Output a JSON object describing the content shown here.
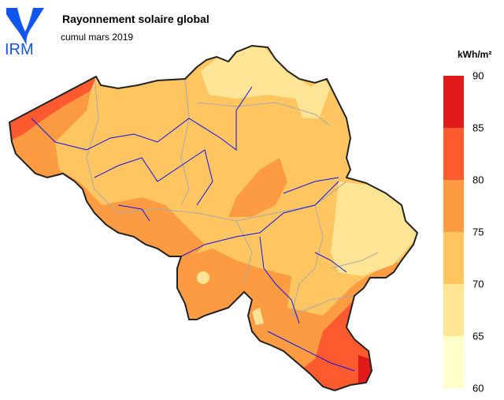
{
  "logo": {
    "text": "IRM",
    "color": "#1155ee"
  },
  "header": {
    "title": "Rayonnement solaire global",
    "subtitle": "cumul mars 2019"
  },
  "legend": {
    "unit": "kWh/m²",
    "ticks": [
      "90",
      "85",
      "80",
      "75",
      "70",
      "65",
      "60"
    ],
    "classes": [
      {
        "range": "85-90",
        "color": "#e31a1c"
      },
      {
        "range": "80-85",
        "color": "#fd5a2f"
      },
      {
        "range": "75-80",
        "color": "#fd9b42"
      },
      {
        "range": "70-75",
        "color": "#fec561"
      },
      {
        "range": "65-70",
        "color": "#fee595"
      },
      {
        "range": "60-65",
        "color": "#ffffcc"
      }
    ]
  },
  "map": {
    "border_color": "#222222",
    "river_color": "#1010ee",
    "province_color": "#aaaaaa"
  }
}
